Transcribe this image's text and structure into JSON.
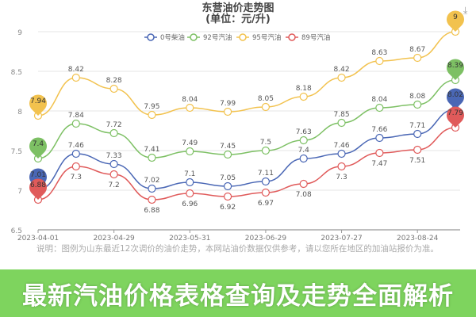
{
  "chart_data": {
    "type": "line",
    "title": "东营油价走势图",
    "subtitle": "(单位：元/升)",
    "x_tick_labels": [
      "2023-04-01",
      "",
      "2023-04-29",
      "",
      "2023-05-31",
      "",
      "2023-06-29",
      "",
      "2023-07-27",
      "",
      "2023-08-24",
      ""
    ],
    "ylim": [
      6.5,
      9
    ],
    "y_ticks": [
      6.5,
      7,
      7.5,
      8,
      8.5,
      9
    ],
    "grid": true,
    "legend_position": "top",
    "series": [
      {
        "name": "0号柴油",
        "color": "#4a67b5",
        "values": [
          7.01,
          7.46,
          7.33,
          7.02,
          7.1,
          7.05,
          7.11,
          7.4,
          7.46,
          7.66,
          7.71,
          8.02
        ]
      },
      {
        "name": "92号汽油",
        "color": "#7dc064",
        "values": [
          7.4,
          7.84,
          7.72,
          7.41,
          7.49,
          7.45,
          7.5,
          7.63,
          7.85,
          8.04,
          8.08,
          8.39
        ]
      },
      {
        "name": "95号汽油",
        "color": "#f2c24e",
        "values": [
          7.94,
          8.42,
          8.28,
          7.95,
          8.04,
          7.99,
          8.05,
          8.18,
          8.42,
          8.63,
          8.67,
          9
        ]
      },
      {
        "name": "89号汽油",
        "color": "#e05a5a",
        "values": [
          6.88,
          7.3,
          7.2,
          6.88,
          6.96,
          6.92,
          6.97,
          7.08,
          7.3,
          7.47,
          7.51,
          7.79
        ]
      }
    ],
    "pins": [
      {
        "series": 2,
        "index": 0,
        "label": "7.94"
      },
      {
        "series": 2,
        "index": 11,
        "label": "9"
      },
      {
        "series": 1,
        "index": 0,
        "label": "7.4"
      },
      {
        "series": 1,
        "index": 11,
        "label": "8.39"
      },
      {
        "series": 0,
        "index": 0,
        "label": "7.01"
      },
      {
        "series": 0,
        "index": 11,
        "label": "8.02"
      },
      {
        "series": 3,
        "index": 0,
        "label": "6.88"
      },
      {
        "series": 3,
        "index": 11,
        "label": "7.79"
      }
    ]
  },
  "banner": "最新汽油价格表格查询及走势全面解析",
  "note": "说明：图例为山东最近12次调价的油价走势，本网站油价数据仅供参考，请以您所在地区的加油站报价为准。",
  "download_icon": "download-icon"
}
